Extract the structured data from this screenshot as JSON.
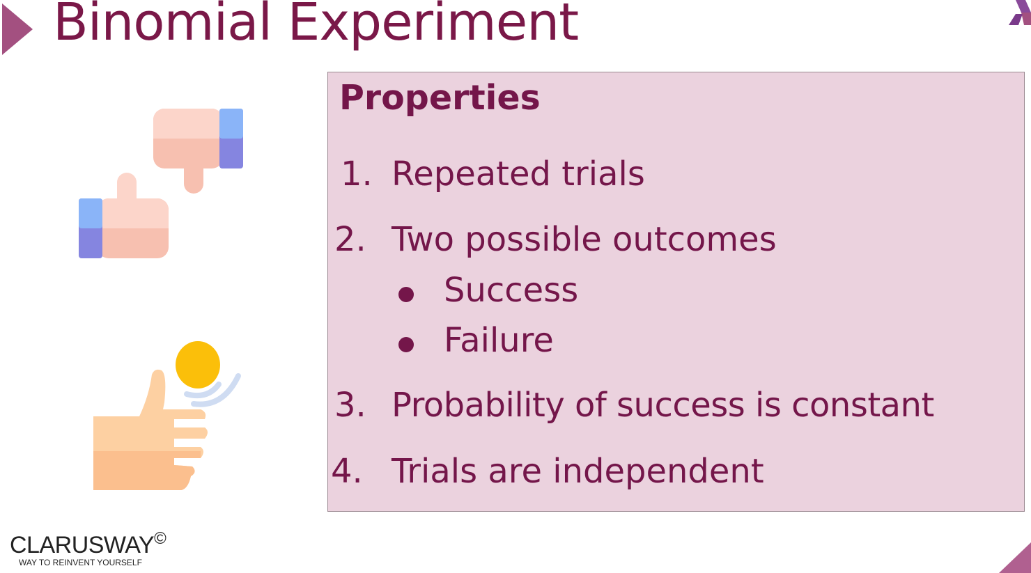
{
  "slide": {
    "title": "Binomial Experiment"
  },
  "properties": {
    "heading": "Properties",
    "items": [
      {
        "number": "1.",
        "text": "Repeated trials"
      },
      {
        "number": "2.",
        "text": "Two possible outcomes"
      },
      {
        "number": "3.",
        "text": "Probability of success  is constant"
      },
      {
        "number": "4.",
        "text": "Trials are independent"
      }
    ],
    "outcomes": [
      "Success",
      "Failure"
    ]
  },
  "icons": {
    "thumbs": "thumbs-up-down-icon",
    "coin": "coin-flip-icon"
  },
  "brand": {
    "name": "CLARUSWAY",
    "copyright": "©",
    "tagline": "WAY TO REINVENT YOURSELF"
  },
  "colors": {
    "title": "#7a1848",
    "accent": "#a35080",
    "box_bg": "#ebd2de",
    "text": "#74164a"
  }
}
